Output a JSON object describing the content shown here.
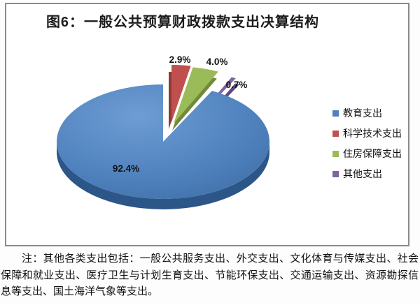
{
  "chart_data": {
    "type": "pie",
    "style": "3d-exploded-pie",
    "title": "图6：一般公共预算财政拨款支出决算结构",
    "legend_position": "right",
    "grid": false,
    "series": [
      {
        "name": "教育支出",
        "value": 92.4,
        "label": "92.4%",
        "color": "#4E81BD"
      },
      {
        "name": "科学技术支出",
        "value": 2.9,
        "label": "2.9%",
        "color": "#C0504D"
      },
      {
        "name": "住房保障支出",
        "value": 4.0,
        "label": "4.0%",
        "color": "#9BBB59"
      },
      {
        "name": "其他支出",
        "value": 0.7,
        "label": "0.7%",
        "color": "#8064A2"
      }
    ],
    "side_colors": [
      "#2C5687",
      "#8E3B38",
      "#6F8A3B",
      "#5C487A"
    ]
  },
  "note": "注：其他各类支出包括：一般公共服务支出、外交支出、文化体育与传媒支出、社会保障和就业支出、医疗卫生与计划生育支出、节能环保支出、交通运输支出、资源勘探信息等支出、国土海洋气象等支出。"
}
